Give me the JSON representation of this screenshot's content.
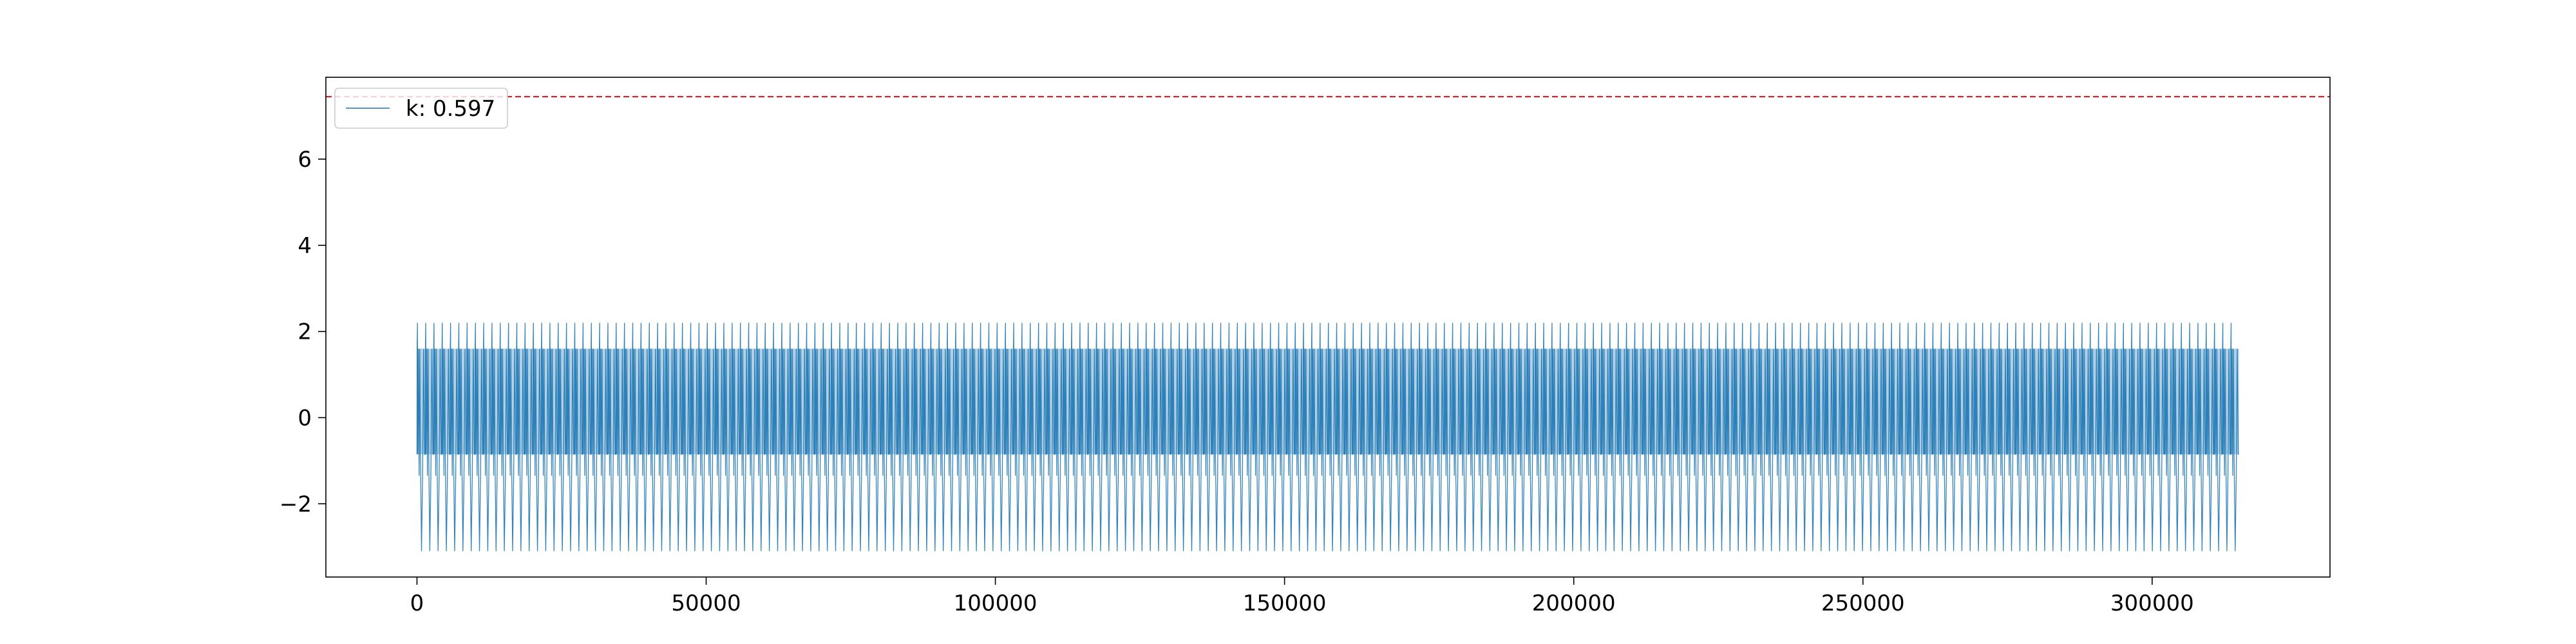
{
  "chart_data": {
    "type": "line",
    "title": "",
    "xlabel": "",
    "ylabel": "",
    "xlim": [
      -15750,
      330750
    ],
    "ylim": [
      -3.7,
      7.9
    ],
    "x_ticks": [
      0,
      50000,
      100000,
      150000,
      200000,
      250000,
      300000
    ],
    "x_tick_labels": [
      "0",
      "50000",
      "100000",
      "150000",
      "200000",
      "250000",
      "300000"
    ],
    "y_ticks": [
      -2,
      0,
      2,
      4,
      6
    ],
    "y_tick_labels": [
      "−2",
      "0",
      "2",
      "4",
      "6"
    ],
    "grid": false,
    "legend": {
      "placement": "top-left"
    },
    "series": [
      {
        "name": "k: 0.597",
        "color": "#1f77b4",
        "x_start": 0,
        "x_end": 315000,
        "cycles": 220,
        "levels": [
          2.2,
          1.6,
          -0.85,
          -1.35,
          -3.1
        ],
        "dense_band": [
          -0.85,
          1.6
        ]
      }
    ],
    "reference_lines": [
      {
        "orientation": "horizontal",
        "y": 7.45,
        "color": "#d62728",
        "style": "dashed"
      }
    ]
  }
}
